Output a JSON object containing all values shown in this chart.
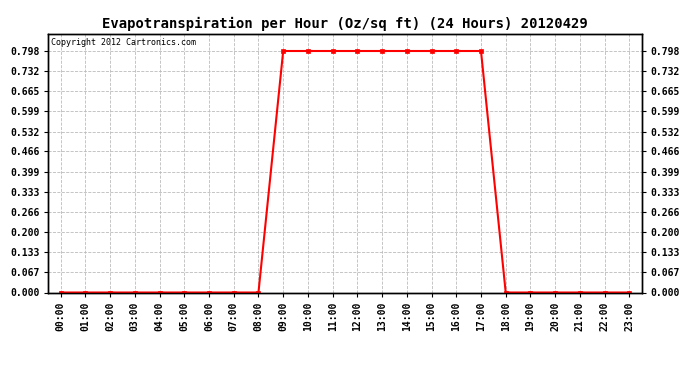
{
  "title": "Evapotranspiration per Hour (Oz/sq ft) (24 Hours) 20120429",
  "copyright_text": "Copyright 2012 Cartronics.com",
  "x_labels": [
    "00:00",
    "01:00",
    "02:00",
    "03:00",
    "04:00",
    "05:00",
    "06:00",
    "07:00",
    "08:00",
    "09:00",
    "10:00",
    "11:00",
    "12:00",
    "13:00",
    "14:00",
    "15:00",
    "16:00",
    "17:00",
    "18:00",
    "19:00",
    "20:00",
    "21:00",
    "22:00",
    "23:00"
  ],
  "x_values": [
    0,
    1,
    2,
    3,
    4,
    5,
    6,
    7,
    8,
    9,
    10,
    11,
    12,
    13,
    14,
    15,
    16,
    17,
    18,
    19,
    20,
    21,
    22,
    23
  ],
  "y_values": [
    0,
    0,
    0,
    0,
    0,
    0,
    0,
    0,
    0,
    0.798,
    0.798,
    0.798,
    0.798,
    0.798,
    0.798,
    0.798,
    0.798,
    0.798,
    0,
    0,
    0,
    0,
    0,
    0
  ],
  "yticks": [
    0.0,
    0.067,
    0.133,
    0.2,
    0.266,
    0.333,
    0.399,
    0.466,
    0.532,
    0.599,
    0.665,
    0.732,
    0.798
  ],
  "ytick_labels": [
    "0.000",
    "0.067",
    "0.133",
    "0.200",
    "0.266",
    "0.333",
    "0.399",
    "0.466",
    "0.532",
    "0.599",
    "0.665",
    "0.732",
    "0.798"
  ],
  "line_color": "#ff0000",
  "marker": "s",
  "marker_size": 2.5,
  "line_width": 1.5,
  "background_color": "#ffffff",
  "plot_bg_color": "#ffffff",
  "grid_color": "#bbbbbb",
  "grid_style": "--",
  "title_fontsize": 10,
  "tick_fontsize": 7,
  "copyright_fontsize": 6,
  "ylim": [
    0.0,
    0.855
  ],
  "xlim": [
    -0.5,
    23.5
  ]
}
